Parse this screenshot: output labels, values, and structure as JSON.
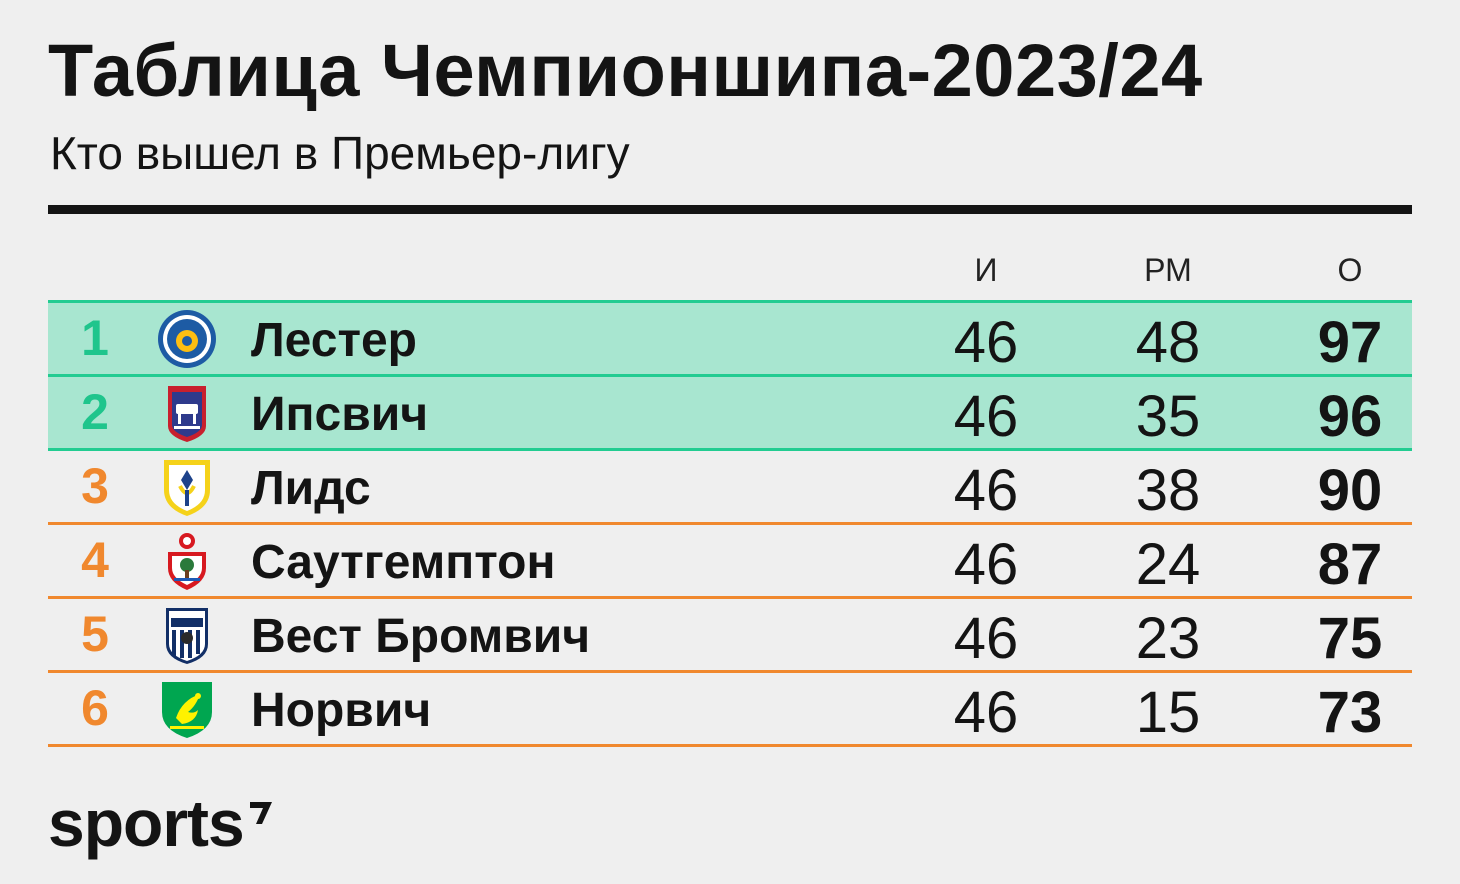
{
  "header": {
    "title": "Таблица Чемпионшипа-2023/24",
    "subtitle": "Кто вышел в Премьер-лигу"
  },
  "columns": {
    "games": "И",
    "goal_diff": "РМ",
    "points": "О"
  },
  "rows": [
    {
      "pos": "1",
      "team": "Лестер",
      "games": "46",
      "gd": "48",
      "pts": "97",
      "zone": "promotion",
      "crest": "leicester-crest-icon"
    },
    {
      "pos": "2",
      "team": "Ипсвич",
      "games": "46",
      "gd": "35",
      "pts": "96",
      "zone": "promotion",
      "crest": "ipswich-crest-icon"
    },
    {
      "pos": "3",
      "team": "Лидс",
      "games": "46",
      "gd": "38",
      "pts": "90",
      "zone": "playoff",
      "crest": "leeds-crest-icon"
    },
    {
      "pos": "4",
      "team": "Саутгемптон",
      "games": "46",
      "gd": "24",
      "pts": "87",
      "zone": "playoff",
      "crest": "southampton-crest-icon"
    },
    {
      "pos": "5",
      "team": "Вест Бромвич",
      "games": "46",
      "gd": "23",
      "pts": "75",
      "zone": "playoff",
      "crest": "west-brom-crest-icon"
    },
    {
      "pos": "6",
      "team": "Норвич",
      "games": "46",
      "gd": "15",
      "pts": "73",
      "zone": "playoff",
      "crest": "norwich-crest-icon"
    }
  ],
  "colors": {
    "promotion_fill": "#a8e6d0",
    "promotion_accent": "#22cc91",
    "playoff_accent": "#f0882e",
    "text": "#141414",
    "background": "#efefef"
  },
  "brand": {
    "logo_text": "sports"
  }
}
